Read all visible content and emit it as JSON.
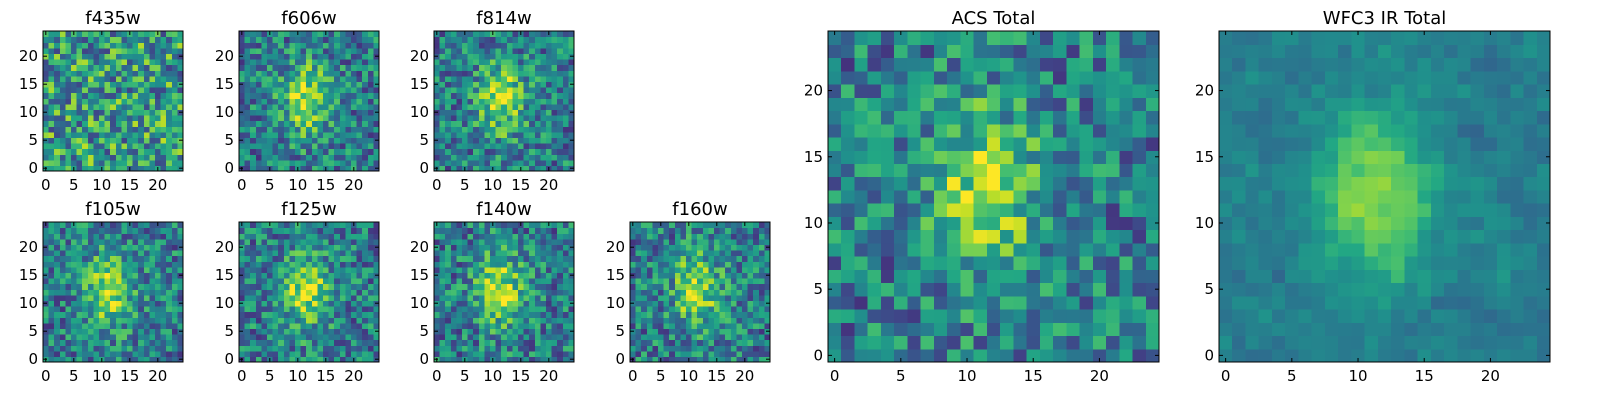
{
  "figure": {
    "type": "heatmap_grid",
    "colormap": "viridis"
  },
  "chart_data": [
    {
      "type": "heatmap",
      "title": "f435w",
      "grid": [
        25,
        25
      ],
      "xlim": [
        -0.5,
        24.5
      ],
      "ylim": [
        -0.5,
        24.5
      ],
      "xticks": [
        0,
        5,
        10,
        15,
        20
      ],
      "yticks": [
        0,
        5,
        10,
        15,
        20
      ],
      "pattern": "noise",
      "seed": 11
    },
    {
      "type": "heatmap",
      "title": "f606w",
      "grid": [
        25,
        25
      ],
      "xlim": [
        -0.5,
        24.5
      ],
      "ylim": [
        -0.5,
        24.5
      ],
      "xticks": [
        0,
        5,
        10,
        15,
        20
      ],
      "yticks": [
        0,
        5,
        10,
        15,
        20
      ],
      "pattern": "source",
      "seed": 23
    },
    {
      "type": "heatmap",
      "title": "f814w",
      "grid": [
        25,
        25
      ],
      "xlim": [
        -0.5,
        24.5
      ],
      "ylim": [
        -0.5,
        24.5
      ],
      "xticks": [
        0,
        5,
        10,
        15,
        20
      ],
      "yticks": [
        0,
        5,
        10,
        15,
        20
      ],
      "pattern": "source",
      "seed": 37
    },
    {
      "type": "heatmap",
      "title": "f105w",
      "grid": [
        25,
        25
      ],
      "xlim": [
        -0.5,
        24.5
      ],
      "ylim": [
        -0.5,
        24.5
      ],
      "xticks": [
        0,
        5,
        10,
        15,
        20
      ],
      "yticks": [
        0,
        5,
        10,
        15,
        20
      ],
      "pattern": "source",
      "seed": 41
    },
    {
      "type": "heatmap",
      "title": "f125w",
      "grid": [
        25,
        25
      ],
      "xlim": [
        -0.5,
        24.5
      ],
      "ylim": [
        -0.5,
        24.5
      ],
      "xticks": [
        0,
        5,
        10,
        15,
        20
      ],
      "yticks": [
        0,
        5,
        10,
        15,
        20
      ],
      "pattern": "source",
      "seed": 53
    },
    {
      "type": "heatmap",
      "title": "f140w",
      "grid": [
        25,
        25
      ],
      "xlim": [
        -0.5,
        24.5
      ],
      "ylim": [
        -0.5,
        24.5
      ],
      "xticks": [
        0,
        5,
        10,
        15,
        20
      ],
      "yticks": [
        0,
        5,
        10,
        15,
        20
      ],
      "pattern": "source",
      "seed": 67
    },
    {
      "type": "heatmap",
      "title": "f160w",
      "grid": [
        25,
        25
      ],
      "xlim": [
        -0.5,
        24.5
      ],
      "ylim": [
        -0.5,
        24.5
      ],
      "xticks": [
        0,
        5,
        10,
        15,
        20
      ],
      "yticks": [
        0,
        5,
        10,
        15,
        20
      ],
      "pattern": "source",
      "seed": 79
    },
    {
      "type": "heatmap",
      "title": "ACS Total",
      "grid": [
        25,
        25
      ],
      "xlim": [
        -0.5,
        24.5
      ],
      "ylim": [
        -0.5,
        24.5
      ],
      "xticks": [
        0,
        5,
        10,
        15,
        20
      ],
      "yticks": [
        0,
        5,
        10,
        15,
        20
      ],
      "pattern": "source",
      "seed": 83
    },
    {
      "type": "heatmap",
      "title": "WFC3 IR Total",
      "grid": [
        25,
        25
      ],
      "xlim": [
        -0.5,
        24.5
      ],
      "ylim": [
        -0.5,
        24.5
      ],
      "xticks": [
        0,
        5,
        10,
        15,
        20
      ],
      "yticks": [
        0,
        5,
        10,
        15,
        20
      ],
      "pattern": "smooth",
      "seed": 97
    }
  ]
}
